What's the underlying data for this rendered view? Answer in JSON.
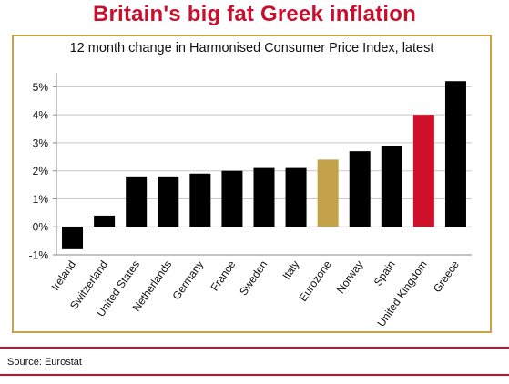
{
  "title": "Britain's big fat Greek inflation",
  "source": "Source: Eurostat",
  "colors": {
    "title": "#c8102e",
    "bar_default": "#000000",
    "bar_eurozone": "#c3a24a",
    "bar_uk": "#d0102b",
    "frame": "#c9a24a",
    "rule": "#c8102e"
  },
  "chart_data": {
    "type": "bar",
    "title": "12 month change in Harmonised Consumer Price Index, latest",
    "xlabel": "",
    "ylabel": "",
    "ylim": [
      -1,
      5.5
    ],
    "yticks": [
      -1,
      0,
      1,
      2,
      3,
      4,
      5
    ],
    "ytick_labels": [
      "-1%",
      "0%",
      "1%",
      "2%",
      "3%",
      "4%",
      "5%"
    ],
    "grid": true,
    "categories": [
      "Ireland",
      "Switzerland",
      "United States",
      "Netherlands",
      "Germany",
      "France",
      "Sweden",
      "Italy",
      "Eurozone",
      "Norway",
      "Spain",
      "United Kingdom",
      "Greece"
    ],
    "values": [
      -0.8,
      0.4,
      1.8,
      1.8,
      1.9,
      2.0,
      2.1,
      2.1,
      2.4,
      2.7,
      2.9,
      4.0,
      5.2
    ],
    "highlight": {
      "Eurozone": "#c3a24a",
      "United Kingdom": "#d0102b"
    }
  }
}
